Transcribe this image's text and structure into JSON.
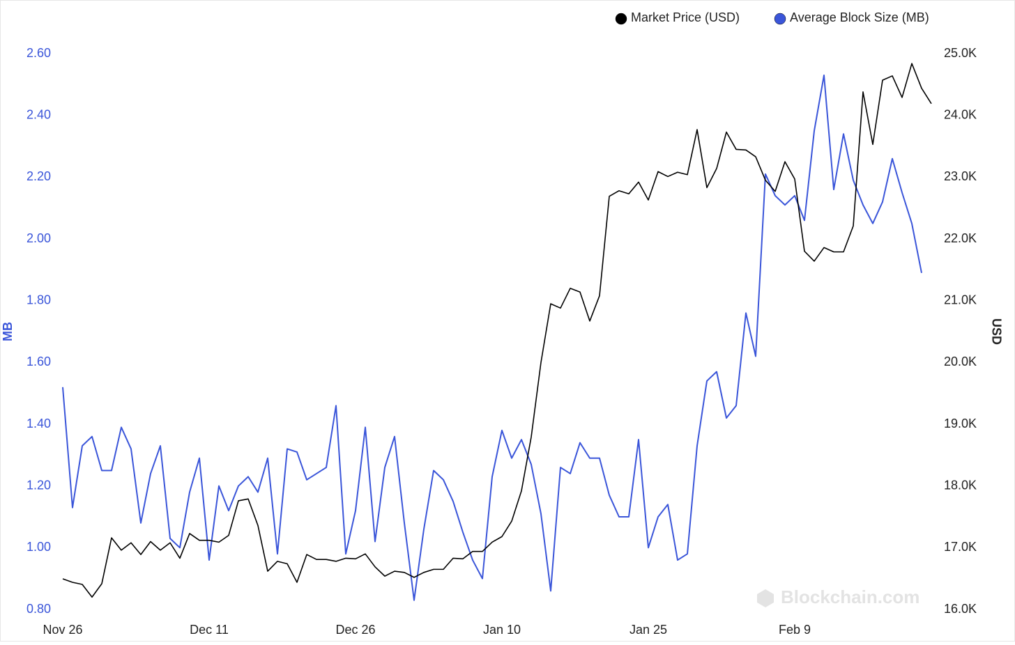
{
  "chart_data": {
    "type": "line",
    "legend": "top-right",
    "y_label": "MB",
    "y2_label": "USD",
    "watermark": "Blockchain.com",
    "categories": [
      "Nov 26",
      null,
      null,
      null,
      null,
      null,
      null,
      null,
      null,
      null,
      null,
      null,
      null,
      null,
      null,
      "Dec 11",
      null,
      null,
      null,
      null,
      null,
      null,
      null,
      null,
      null,
      null,
      null,
      null,
      null,
      null,
      "Dec 26",
      null,
      null,
      null,
      null,
      null,
      null,
      null,
      null,
      null,
      null,
      null,
      null,
      null,
      null,
      "Jan 10",
      null,
      null,
      null,
      null,
      null,
      null,
      null,
      null,
      null,
      null,
      null,
      null,
      null,
      null,
      "Jan 25",
      null,
      null,
      null,
      null,
      null,
      null,
      null,
      null,
      null,
      null,
      null,
      null,
      null,
      null,
      "Feb 9",
      null,
      null,
      null,
      null,
      null,
      null,
      null,
      null,
      null,
      null,
      null,
      null,
      null,
      null
    ],
    "series": [
      {
        "name": "Market Price (USD)",
        "color": "#000000",
        "axis": "y2",
        "values": [
          16496,
          16440,
          16406,
          16200,
          16417,
          17160,
          16960,
          17080,
          16890,
          17100,
          16960,
          17080,
          16830,
          17230,
          17120,
          17120,
          17090,
          17200,
          17760,
          17790,
          17360,
          16620,
          16780,
          16740,
          16440,
          16890,
          16810,
          16810,
          16780,
          16830,
          16820,
          16900,
          16690,
          16540,
          16620,
          16600,
          16520,
          16600,
          16650,
          16650,
          16830,
          16820,
          16940,
          16940,
          17090,
          17180,
          17430,
          17920,
          18790,
          20000,
          20950,
          20880,
          21200,
          21140,
          20670,
          21080,
          22690,
          22780,
          22730,
          22920,
          22630,
          23090,
          23010,
          23080,
          23040,
          23770,
          22830,
          23140,
          23730,
          23450,
          23440,
          23330,
          22950,
          22770,
          23250,
          22970,
          21800,
          21640,
          21860,
          21790,
          21790,
          22210,
          24380,
          23530,
          24570,
          24640,
          24290,
          24840,
          24440,
          24190
        ]
      },
      {
        "name": "Average Block Size (MB)",
        "color": "#3a55d9",
        "axis": "y",
        "values": [
          1.52,
          1.13,
          1.33,
          1.36,
          1.25,
          1.25,
          1.39,
          1.32,
          1.08,
          1.24,
          1.33,
          1.03,
          1.0,
          1.18,
          1.29,
          0.96,
          1.2,
          1.12,
          1.2,
          1.23,
          1.18,
          1.29,
          0.98,
          1.32,
          1.31,
          1.22,
          1.24,
          1.26,
          1.46,
          0.98,
          1.12,
          1.39,
          1.02,
          1.26,
          1.36,
          1.08,
          0.83,
          1.06,
          1.25,
          1.22,
          1.15,
          1.05,
          0.96,
          0.9,
          1.23,
          1.38,
          1.29,
          1.35,
          1.27,
          1.11,
          0.86,
          1.26,
          1.24,
          1.34,
          1.29,
          1.29,
          1.17,
          1.1,
          1.1,
          1.35,
          1.0,
          1.1,
          1.14,
          0.96,
          0.98,
          1.33,
          1.54,
          1.57,
          1.42,
          1.46,
          1.76,
          1.62,
          2.21,
          2.14,
          2.11,
          2.14,
          2.06,
          2.35,
          2.53,
          2.16,
          2.34,
          2.19,
          2.11,
          2.05,
          2.12,
          2.26,
          2.15,
          2.05,
          1.89,
          null
        ]
      }
    ],
    "ylim": [
      0.8,
      2.6
    ],
    "yticks": [
      {
        "value": 0.8,
        "label": "0.80"
      },
      {
        "value": 1,
        "label": "1.00"
      },
      {
        "value": 1.2,
        "label": "1.20"
      },
      {
        "value": 1.4,
        "label": "1.40"
      },
      {
        "value": 1.6,
        "label": "1.60"
      },
      {
        "value": 1.8,
        "label": "1.80"
      },
      {
        "value": 2,
        "label": "2.00"
      },
      {
        "value": 2.2,
        "label": "2.20"
      },
      {
        "value": 2.4,
        "label": "2.40"
      },
      {
        "value": 2.6,
        "label": "2.60"
      }
    ],
    "y2lim": [
      16000,
      25000
    ],
    "y2ticks": [
      {
        "value": 16000,
        "label": "16.0K"
      },
      {
        "value": 17000,
        "label": "17.0K"
      },
      {
        "value": 18000,
        "label": "18.0K"
      },
      {
        "value": 19000,
        "label": "19.0K"
      },
      {
        "value": 20000,
        "label": "20.0K"
      },
      {
        "value": 21000,
        "label": "21.0K"
      },
      {
        "value": 22000,
        "label": "22.0K"
      },
      {
        "value": 23000,
        "label": "23.0K"
      },
      {
        "value": 24000,
        "label": "24.0K"
      },
      {
        "value": 25000,
        "label": "25.0K"
      }
    ],
    "grid": false
  }
}
